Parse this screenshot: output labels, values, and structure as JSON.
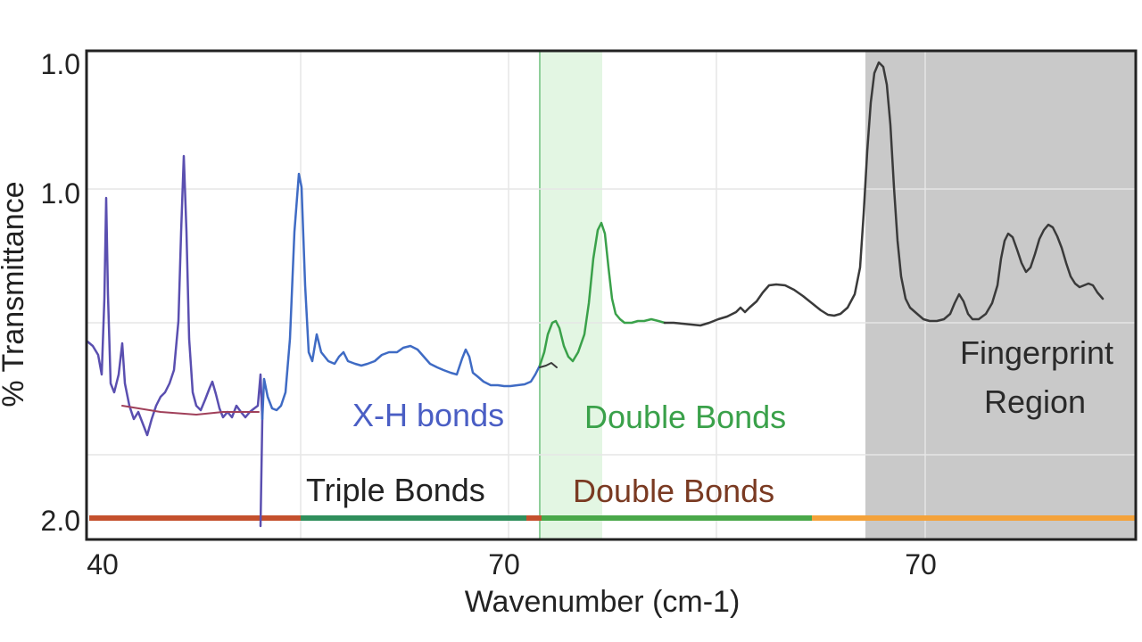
{
  "chart_data": {
    "type": "line",
    "xlabel": "Wavenumber (cm-1)",
    "ylabel": "% Transmittance",
    "x_tick_labels": [
      "40",
      "70",
      "70"
    ],
    "y_tick_labels": [
      "1.0",
      "1.0",
      "2.0"
    ],
    "grid": true,
    "legend": "none",
    "colors": {
      "xh": "#4a5ec4",
      "double_upper": "#3aa14a",
      "fingerprint": "#3a3a3a",
      "shade_fingerprint": "#c9c9c9",
      "shade_double": "#e3f6e3",
      "bar_red": "#c4502d",
      "bar_green": "#2f8f5c",
      "bar_orange": "#f4a23a",
      "label_dark": "#222222",
      "label_brown": "#7a3a22"
    },
    "regions": [
      {
        "name": "X-H bonds",
        "color": "#4a5ec4"
      },
      {
        "name": "Double Bonds",
        "color": "#3aa14a"
      },
      {
        "name": "Fingerprint Region",
        "lines": [
          "Fingerprint",
          "Region"
        ],
        "color": "#2a2a2a"
      },
      {
        "name": "Triple Bonds",
        "color": "#222222"
      },
      {
        "name": "Double Bonds",
        "color": "#7a3a22"
      }
    ]
  }
}
